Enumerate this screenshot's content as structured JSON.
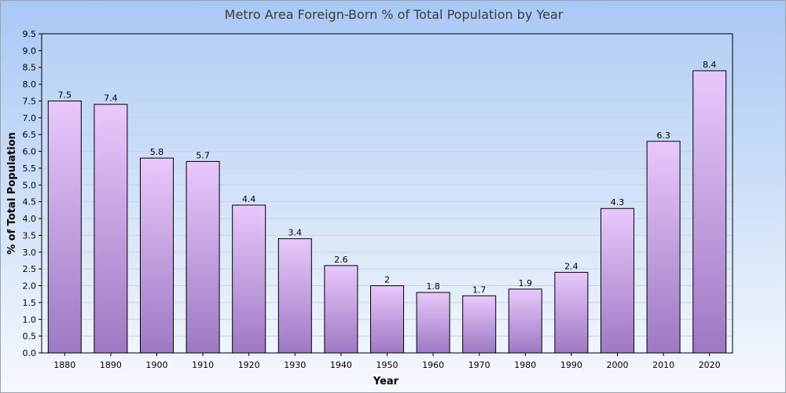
{
  "chart_data": {
    "type": "bar",
    "title": "Metro Area Foreign-Born % of Total Population by Year",
    "xlabel": "Year",
    "ylabel": "% of Total Population",
    "categories": [
      "1880",
      "1890",
      "1900",
      "1910",
      "1920",
      "1930",
      "1940",
      "1950",
      "1960",
      "1970",
      "1980",
      "1990",
      "2000",
      "2010",
      "2020"
    ],
    "values": [
      7.5,
      7.4,
      5.8,
      5.7,
      4.4,
      3.4,
      2.6,
      2,
      1.8,
      1.7,
      1.9,
      2.4,
      4.3,
      6.3,
      8.4
    ],
    "data_labels": [
      "7.5",
      "7.4",
      "5.8",
      "5.7",
      "4.4",
      "3.4",
      "2.6",
      "2",
      "1.8",
      "1.7",
      "1.9",
      "2.4",
      "4.3",
      "6.3",
      "8.4"
    ],
    "y_ticks": [
      "0.0",
      "0.5",
      "1.0",
      "1.5",
      "2.0",
      "2.5",
      "3.0",
      "3.5",
      "4.0",
      "4.5",
      "5.0",
      "5.5",
      "6.0",
      "6.5",
      "7.0",
      "7.5",
      "8.0",
      "8.5",
      "9.0",
      "9.5"
    ],
    "ylim": [
      0,
      9.5
    ],
    "grid": true,
    "legend": "none",
    "colors": {
      "bar_top": "#e8c8fc",
      "bar_bottom": "#9d79c3",
      "bar_stroke": "#000000",
      "grid": "#c9d3df",
      "axis": "#000000"
    }
  }
}
